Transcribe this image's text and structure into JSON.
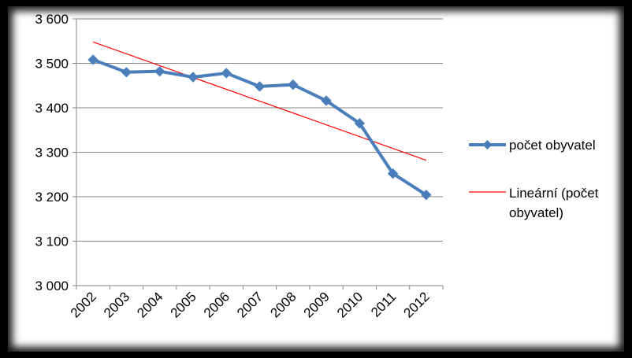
{
  "chart_data": {
    "type": "line",
    "categories": [
      "2002",
      "2003",
      "2004",
      "2005",
      "2006",
      "2007",
      "2008",
      "2009",
      "2010",
      "2011",
      "2012"
    ],
    "series": [
      {
        "name": "počet obyvatel",
        "values": [
          3508,
          3480,
          3482,
          3469,
          3478,
          3448,
          3452,
          3416,
          3365,
          3252,
          3204
        ],
        "color": "#4a7ebb",
        "marker": "diamond"
      }
    ],
    "trendline": {
      "name": "Lineární (počet obyvatel)",
      "name_lines": [
        "Lineární (počet",
        "obyvatel)"
      ],
      "start": 3548,
      "end": 3282,
      "color": "#ff0000"
    },
    "yaxis": {
      "min": 3000,
      "max": 3600,
      "step": 100,
      "tick_labels": [
        "3 000",
        "3 100",
        "3 200",
        "3 300",
        "3 400",
        "3 500",
        "3 600"
      ]
    },
    "grid": true,
    "legend_position": "right",
    "title": "",
    "xlabel": "",
    "ylabel": ""
  }
}
